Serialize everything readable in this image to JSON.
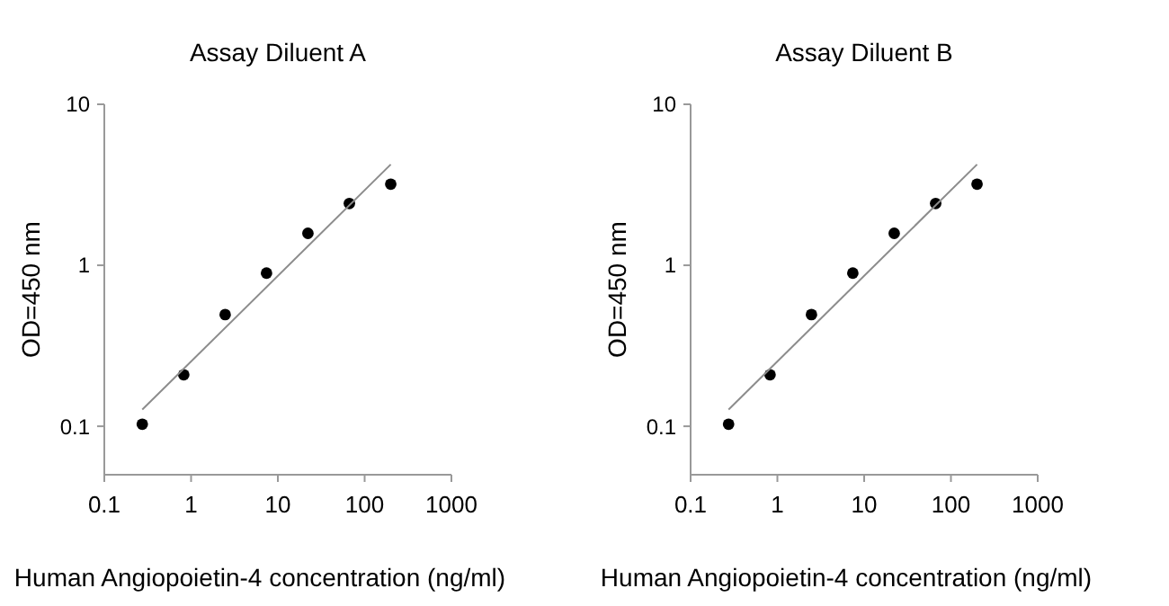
{
  "chart_data": [
    {
      "type": "scatter",
      "title": "Assay Diluent A",
      "xlabel": "Human Angiopoietin-4 concentration (ng/ml)",
      "ylabel": "OD=450 nm",
      "log": "xy",
      "xlim": [
        0.1,
        1000
      ],
      "xticks": [
        0.1,
        1,
        10,
        100,
        1000
      ],
      "ylim": [
        0.05,
        10
      ],
      "yticks": [
        0.1,
        1,
        10
      ],
      "series": [
        {
          "marker": "circle",
          "color": "#000000",
          "x": [
            0.274,
            0.823,
            2.47,
            7.4,
            22.2,
            66.7,
            200
          ],
          "values": [
            0.103,
            0.209,
            0.494,
            0.894,
            1.58,
            2.42,
            3.19
          ]
        },
        {
          "type": "line",
          "color": "#8c8c8c",
          "x": [
            0.274,
            200
          ],
          "values": [
            0.127,
            4.23
          ]
        }
      ]
    },
    {
      "type": "scatter",
      "title": "Assay Diluent B",
      "xlabel": "Human Angiopoietin-4 concentration (ng/ml)",
      "ylabel": "OD=450 nm",
      "log": "xy",
      "xlim": [
        0.1,
        1000
      ],
      "xticks": [
        0.1,
        1,
        10,
        100,
        1000
      ],
      "ylim": [
        0.05,
        10
      ],
      "yticks": [
        0.1,
        1,
        10
      ],
      "series": [
        {
          "marker": "circle",
          "color": "#000000",
          "x": [
            0.274,
            0.823,
            2.47,
            7.4,
            22.2,
            66.7,
            200
          ],
          "values": [
            0.103,
            0.209,
            0.494,
            0.894,
            1.58,
            2.42,
            3.19
          ]
        },
        {
          "type": "line",
          "color": "#8c8c8c",
          "x": [
            0.274,
            200
          ],
          "values": [
            0.127,
            4.23
          ]
        }
      ]
    }
  ]
}
